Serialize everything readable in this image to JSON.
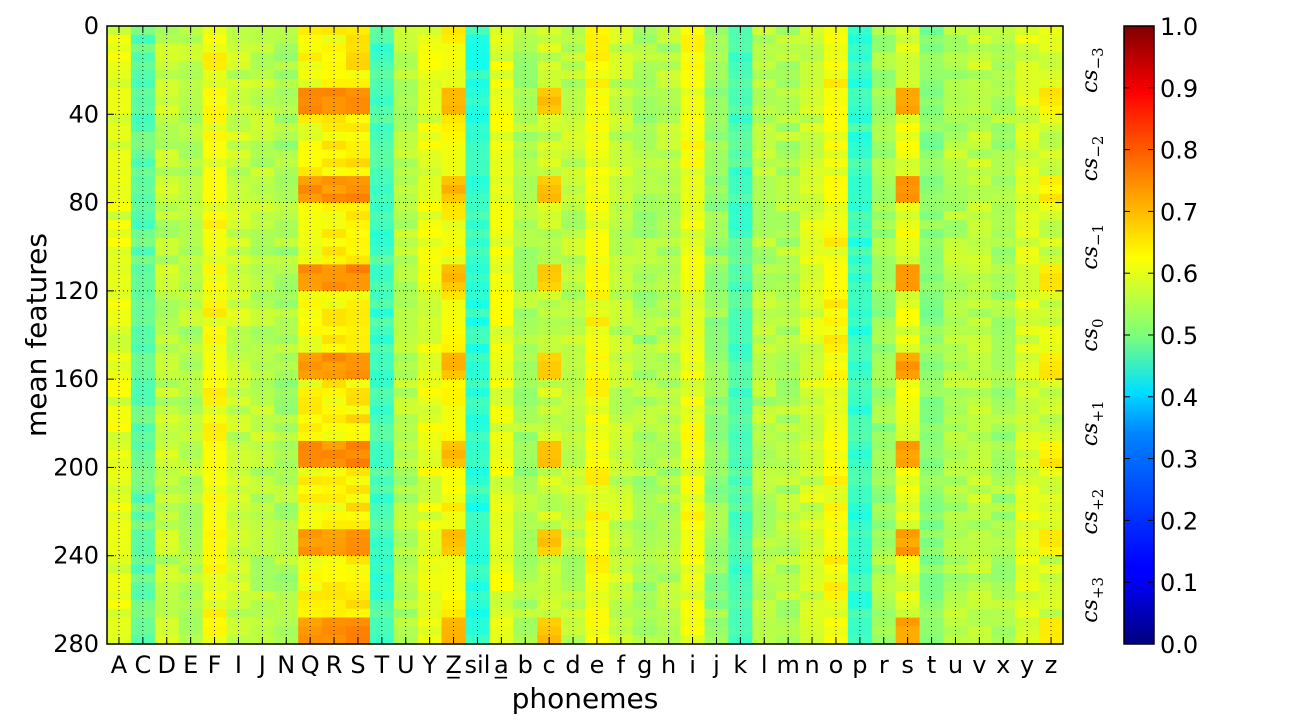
{
  "chart_data": {
    "type": "heatmap",
    "xlabel": "phonemes",
    "ylabel": "mean features",
    "x_categories": [
      "A",
      "C",
      "D",
      "E",
      "F",
      "I",
      "J",
      "N",
      "Q",
      "R",
      "S",
      "T",
      "U",
      "Y",
      "Z̲",
      "sil",
      "a̲",
      "b",
      "c",
      "d",
      "e",
      "f",
      "g",
      "h",
      "i",
      "j",
      "k",
      "l",
      "m",
      "n",
      "o",
      "p",
      "r",
      "s",
      "t",
      "u",
      "v",
      "x",
      "y",
      "z"
    ],
    "y_ticks": [
      0,
      40,
      80,
      120,
      160,
      200,
      240,
      280
    ],
    "ylim": [
      0,
      280
    ],
    "rows": 280,
    "colorbar": {
      "colormap": "jet",
      "range": [
        0.0,
        1.0
      ],
      "ticks": [
        0.0,
        0.1,
        0.2,
        0.3,
        0.4,
        0.5,
        0.6,
        0.7,
        0.8,
        0.9,
        1.0
      ],
      "tick_labels": [
        "0.0",
        "0.1",
        "0.2",
        "0.3",
        "0.4",
        "0.5",
        "0.6",
        "0.7",
        "0.8",
        "0.9",
        "1.0"
      ]
    },
    "groups": [
      {
        "base": "cs",
        "sub": "−3",
        "start": 0,
        "end": 40
      },
      {
        "base": "cs",
        "sub": "−2",
        "start": 40,
        "end": 80
      },
      {
        "base": "cs",
        "sub": "−1",
        "start": 80,
        "end": 120
      },
      {
        "base": "cs",
        "sub": "0",
        "start": 120,
        "end": 160
      },
      {
        "base": "cs",
        "sub": "+1",
        "start": 160,
        "end": 200
      },
      {
        "base": "cs",
        "sub": "+2",
        "start": 200,
        "end": 240
      },
      {
        "base": "cs",
        "sub": "+3",
        "start": 240,
        "end": 280
      }
    ],
    "column_base_values": [
      0.6,
      0.47,
      0.56,
      0.55,
      0.62,
      0.57,
      0.56,
      0.54,
      0.62,
      0.63,
      0.64,
      0.44,
      0.55,
      0.6,
      0.62,
      0.42,
      0.6,
      0.54,
      0.57,
      0.56,
      0.62,
      0.57,
      0.54,
      0.55,
      0.61,
      0.52,
      0.45,
      0.55,
      0.55,
      0.58,
      0.62,
      0.43,
      0.53,
      0.6,
      0.51,
      0.55,
      0.56,
      0.54,
      0.59,
      0.58
    ],
    "column_hot_values": [
      0.6,
      0.47,
      0.58,
      0.55,
      0.62,
      0.57,
      0.56,
      0.54,
      0.73,
      0.73,
      0.74,
      0.44,
      0.55,
      0.6,
      0.69,
      0.42,
      0.6,
      0.54,
      0.68,
      0.56,
      0.62,
      0.57,
      0.54,
      0.55,
      0.61,
      0.52,
      0.45,
      0.55,
      0.55,
      0.58,
      0.62,
      0.43,
      0.53,
      0.72,
      0.51,
      0.55,
      0.56,
      0.54,
      0.59,
      0.64
    ],
    "hot_row_range_in_group": [
      28,
      40
    ],
    "grid": true,
    "vertical_grid_style": "dotted",
    "horizontal_grid_at_group_boundaries": true
  }
}
